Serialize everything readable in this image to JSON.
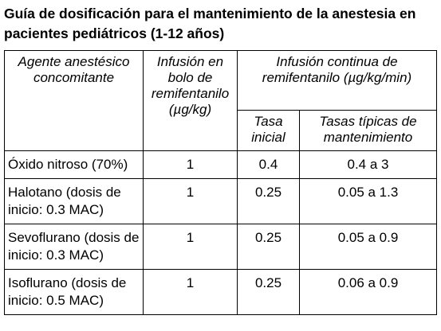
{
  "title": "Guía de dosificación para el mantenimiento de la anestesia en pacientes pediátricos (1-12 años)",
  "headers": {
    "agent": "Agente anestésico concomitante",
    "bolus": "Infusión en bolo de remifentanilo (µg/kg)",
    "continuous": "Infusión continua de remifentanilo (µg/kg/min)",
    "initial_rate": "Tasa inicial",
    "maintenance_rates": "Tasas típicas de mantenimiento"
  },
  "rows": [
    {
      "agent": "Óxido nitroso (70%)",
      "bolus": "1",
      "initial": "0.4",
      "maintenance": "0.4 a 3"
    },
    {
      "agent": "Halotano (dosis de inicio: 0.3 MAC)",
      "bolus": "1",
      "initial": "0.25",
      "maintenance": "0.05 a 1.3"
    },
    {
      "agent": "Sevoflurano (dosis de inicio: 0.3 MAC)",
      "bolus": "1",
      "initial": "0.25",
      "maintenance": "0.05 a 0.9"
    },
    {
      "agent": "Isoflurano (dosis de inicio: 0.5 MAC)",
      "bolus": "1",
      "initial": "0.25",
      "maintenance": "0.06 a 0.9"
    }
  ]
}
